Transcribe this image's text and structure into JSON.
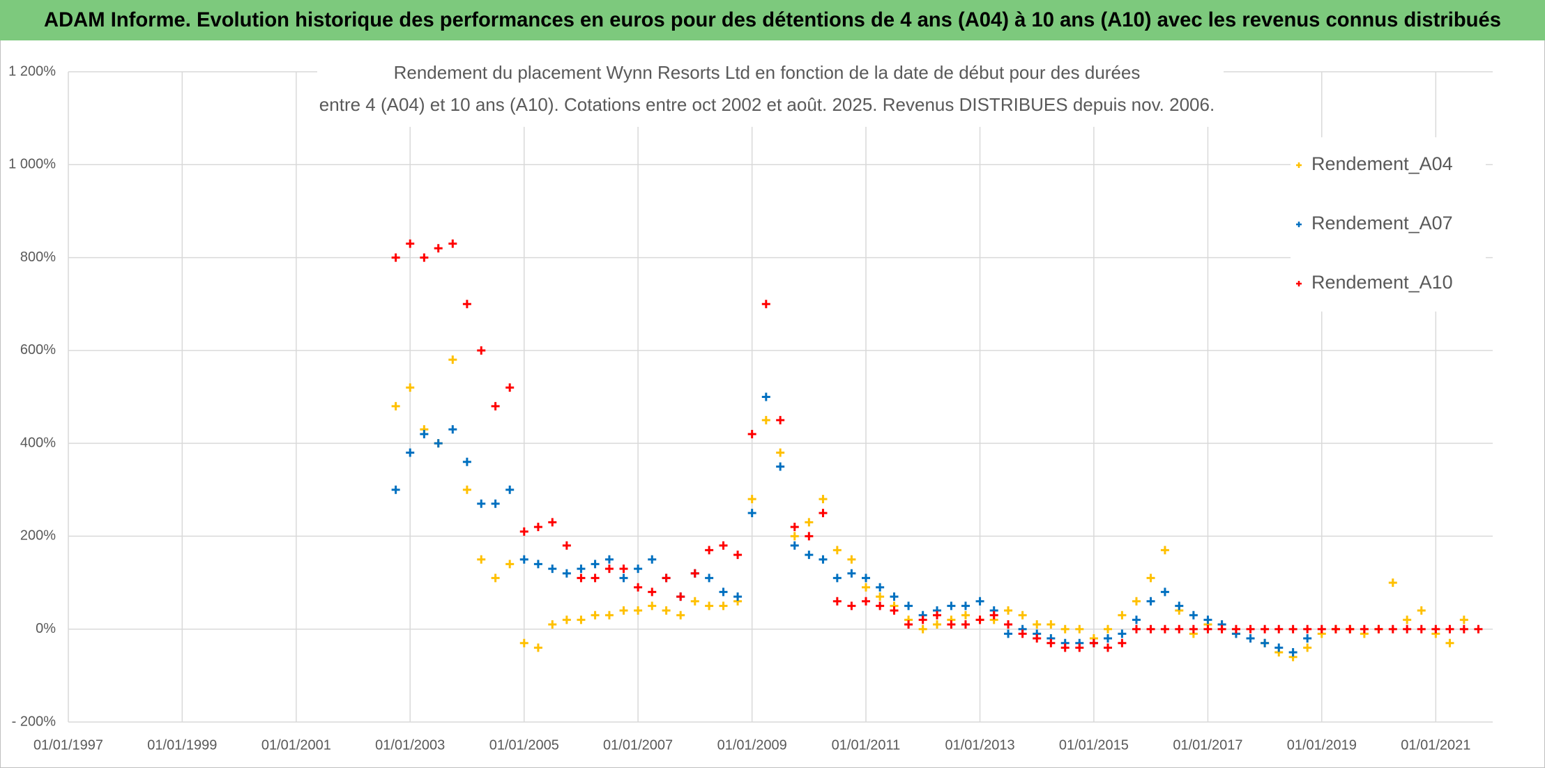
{
  "header": {
    "title": "ADAM Informe. Evolution historique des performances en euros pour des détentions de 4 ans (A04) à 10 ans (A10) avec les revenus connus distribués"
  },
  "chart_data": {
    "type": "scatter",
    "title": [
      "Rendement du placement Wynn Resorts Ltd en fonction de la date de début pour des durées",
      "entre 4 (A04) et 10 ans (A10). Cotations entre oct 2002 et août. 2025. Revenus DISTRIBUES depuis nov. 2006."
    ],
    "legend": "upper right",
    "grid": true,
    "marker": "+",
    "xlim": [
      "01/01/1997",
      "01/01/2022"
    ],
    "xticks": [
      "01/01/1997",
      "01/01/1999",
      "01/01/2001",
      "01/01/2003",
      "01/01/2005",
      "01/01/2007",
      "01/01/2009",
      "01/01/2011",
      "01/01/2013",
      "01/01/2015",
      "01/01/2017",
      "01/01/2019",
      "01/01/2021"
    ],
    "ylim": [
      -200,
      1200
    ],
    "yticks": [
      {
        "value": -200,
        "label": "- 200%"
      },
      {
        "value": 0,
        "label": "0%"
      },
      {
        "value": 200,
        "label": "200%"
      },
      {
        "value": 400,
        "label": "400%"
      },
      {
        "value": 600,
        "label": "600%"
      },
      {
        "value": 800,
        "label": "800%"
      },
      {
        "value": 1000,
        "label": "1 000%"
      },
      {
        "value": 1200,
        "label": "1 200%"
      }
    ],
    "x": [
      "01/10/2002",
      "01/01/2003",
      "01/04/2003",
      "01/07/2003",
      "01/10/2003",
      "01/01/2004",
      "01/04/2004",
      "01/07/2004",
      "01/10/2004",
      "01/01/2005",
      "01/04/2005",
      "01/07/2005",
      "01/10/2005",
      "01/01/2006",
      "01/04/2006",
      "01/07/2006",
      "01/10/2006",
      "01/01/2007",
      "01/04/2007",
      "01/07/2007",
      "01/10/2007",
      "01/01/2008",
      "01/04/2008",
      "01/07/2008",
      "01/10/2008",
      "01/01/2009",
      "01/04/2009",
      "01/07/2009",
      "01/10/2009",
      "01/01/2010",
      "01/04/2010",
      "01/07/2010",
      "01/10/2010",
      "01/01/2011",
      "01/04/2011",
      "01/07/2011",
      "01/10/2011",
      "01/01/2012",
      "01/04/2012",
      "01/07/2012",
      "01/10/2012",
      "01/01/2013",
      "01/04/2013",
      "01/07/2013",
      "01/10/2013",
      "01/01/2014",
      "01/04/2014",
      "01/07/2014",
      "01/10/2014",
      "01/01/2015",
      "01/04/2015",
      "01/07/2015",
      "01/10/2015",
      "01/01/2016",
      "01/04/2016",
      "01/07/2016",
      "01/10/2016",
      "01/01/2017",
      "01/04/2017",
      "01/07/2017",
      "01/10/2017",
      "01/01/2018",
      "01/04/2018",
      "01/07/2018",
      "01/10/2018",
      "01/01/2019",
      "01/04/2019",
      "01/07/2019",
      "01/10/2019",
      "01/01/2020",
      "01/04/2020",
      "01/07/2020",
      "01/10/2020",
      "01/01/2021",
      "01/04/2021",
      "01/07/2021",
      "01/10/2021"
    ],
    "series": [
      {
        "name": "Rendement_A04",
        "color": "#ffc000",
        "values": [
          480,
          520,
          430,
          400,
          580,
          300,
          150,
          110,
          140,
          -30,
          -40,
          10,
          20,
          20,
          30,
          30,
          40,
          40,
          50,
          40,
          30,
          60,
          50,
          50,
          60,
          280,
          450,
          380,
          200,
          230,
          280,
          170,
          150,
          90,
          70,
          50,
          20,
          0,
          10,
          20,
          30,
          20,
          20,
          40,
          30,
          10,
          10,
          0,
          0,
          -20,
          0,
          30,
          60,
          110,
          170,
          40,
          -10,
          10,
          10,
          -10,
          -20,
          -30,
          -50,
          -60,
          -40,
          -10,
          0,
          0,
          -10,
          0,
          100,
          20,
          40,
          -10,
          -30,
          20,
          null
        ]
      },
      {
        "name": "Rendement_A07",
        "color": "#0070c0",
        "values": [
          300,
          380,
          420,
          400,
          430,
          360,
          270,
          270,
          300,
          150,
          140,
          130,
          120,
          130,
          140,
          150,
          110,
          130,
          150,
          110,
          70,
          120,
          110,
          80,
          70,
          250,
          500,
          350,
          180,
          160,
          150,
          110,
          120,
          110,
          90,
          70,
          50,
          30,
          40,
          50,
          50,
          60,
          40,
          -10,
          0,
          -10,
          -20,
          -30,
          -30,
          -30,
          -20,
          -10,
          20,
          60,
          80,
          50,
          30,
          20,
          10,
          -10,
          -20,
          -30,
          -40,
          -50,
          -20,
          null,
          null,
          null,
          null,
          null,
          null,
          null,
          null,
          null,
          null,
          null,
          null
        ]
      },
      {
        "name": "Rendement_A10",
        "color": "#ff0000",
        "values": [
          800,
          830,
          800,
          820,
          830,
          700,
          600,
          480,
          520,
          210,
          220,
          230,
          180,
          110,
          110,
          130,
          130,
          90,
          80,
          110,
          70,
          120,
          170,
          180,
          160,
          420,
          700,
          450,
          220,
          200,
          250,
          60,
          50,
          60,
          50,
          40,
          10,
          20,
          30,
          10,
          10,
          20,
          30,
          10,
          -10,
          -20,
          -30,
          -40,
          -40,
          -30,
          -40,
          -30,
          0,
          0,
          0,
          0,
          0,
          0,
          0,
          0,
          0,
          0,
          0,
          0,
          0,
          0,
          0,
          0,
          0,
          0,
          0,
          0,
          0,
          0,
          0,
          0,
          0
        ]
      }
    ]
  }
}
